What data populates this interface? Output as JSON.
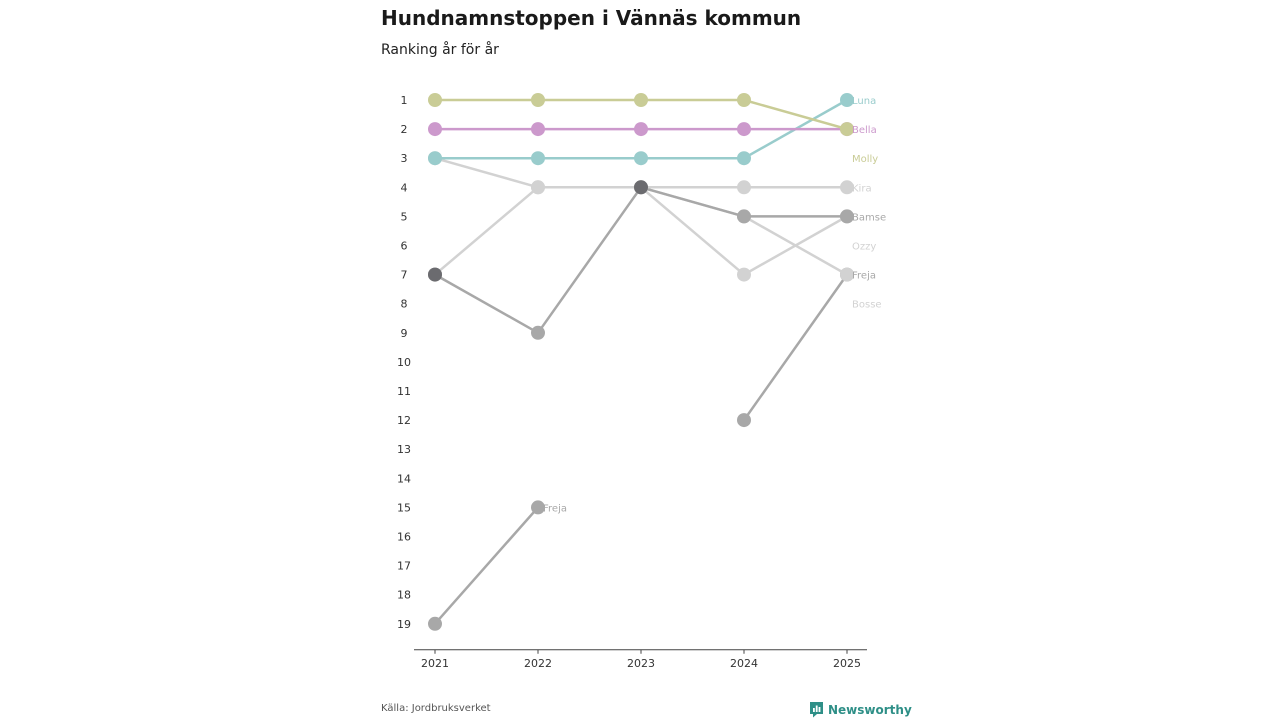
{
  "header": {
    "title": "Hundnamnstoppen i Vännäs kommun",
    "subtitle": "Ranking år för år"
  },
  "footer": {
    "source": "Källa: Jordbruksverket",
    "brand": "Newsworthy"
  },
  "colors": {
    "molly": "#c9cc96",
    "bella": "#cc99cc",
    "luna": "#99cccc",
    "light_grey": "#d2d2d2",
    "mid_grey": "#a8a8a8",
    "dark_grey": "#6b6b6f",
    "axis": "#444444",
    "brand": "#2e8f87"
  },
  "chart_data": {
    "type": "line",
    "title": "Hundnamnstoppen i Vännäs kommun",
    "subtitle": "Ranking år för år",
    "x": [
      "2021",
      "2022",
      "2023",
      "2024",
      "2025"
    ],
    "y_ticks": [
      1,
      2,
      3,
      4,
      5,
      6,
      7,
      8,
      9,
      10,
      11,
      12,
      13,
      14,
      15,
      16,
      17,
      18,
      19
    ],
    "ylim": [
      1,
      19
    ],
    "y_inverted": true,
    "series": [
      {
        "name": "Molly",
        "values": [
          1,
          1,
          1,
          1,
          2
        ],
        "color": "#c9cc96"
      },
      {
        "name": "Bella",
        "values": [
          2,
          2,
          2,
          2,
          2
        ],
        "color": "#cc99cc"
      },
      {
        "name": "Luna",
        "values": [
          3,
          3,
          3,
          3,
          1
        ],
        "color": "#99cccc"
      },
      {
        "name": "Kira",
        "values": [
          3,
          4,
          4,
          4,
          4
        ],
        "color": "#d2d2d2"
      },
      {
        "name": "Bamse",
        "values": [
          7,
          9,
          4,
          5,
          5
        ],
        "color": "#a8a8a8"
      },
      {
        "name": "Ozzy",
        "values": [
          7,
          4,
          4,
          7,
          5
        ],
        "color": "#d2d2d2"
      },
      {
        "name": "Freja",
        "values": [
          19,
          15,
          null,
          null,
          null
        ],
        "color": "#a8a8a8"
      },
      {
        "name": "Freja",
        "values": [
          null,
          null,
          4,
          5,
          7
        ],
        "color": "#d2d2d2"
      },
      {
        "name": "Bosse",
        "values": [
          null,
          null,
          null,
          12,
          7
        ],
        "color": "#a8a8a8"
      }
    ],
    "dots": [
      {
        "year": "2021",
        "rank": 7,
        "color": "#6b6b6f"
      },
      {
        "year": "2023",
        "rank": 4,
        "color": "#6b6b6f"
      }
    ],
    "end_labels": [
      {
        "name": "Luna",
        "rank": 1,
        "color": "#99cccc"
      },
      {
        "name": "Bella",
        "rank": 2,
        "color": "#cc99cc"
      },
      {
        "name": "Molly",
        "rank": 3,
        "color": "#c9cc96"
      },
      {
        "name": "Kira",
        "rank": 4,
        "color": "#d2d2d2"
      },
      {
        "name": "Bamse",
        "rank": 5,
        "color": "#a8a8a8"
      },
      {
        "name": "Ozzy",
        "rank": 6,
        "color": "#d2d2d2"
      },
      {
        "name": "Freja",
        "rank": 7,
        "color": "#a8a8a8"
      },
      {
        "name": "Bosse",
        "rank": 8,
        "color": "#d2d2d2"
      }
    ],
    "inline_labels": [
      {
        "name": "Freja",
        "year": "2022",
        "rank": 15,
        "color": "#a8a8a8"
      }
    ]
  }
}
